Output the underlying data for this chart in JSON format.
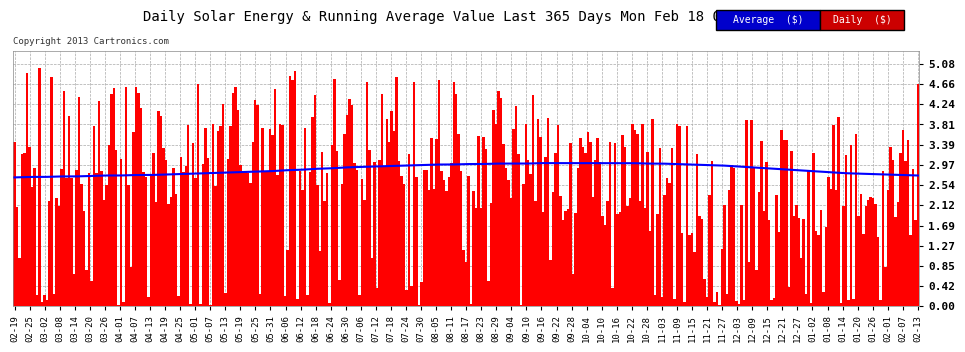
{
  "title": "Daily Solar Energy & Running Average Value Last 365 Days Mon Feb 18 06:56",
  "copyright": "Copyright 2013 Cartronics.com",
  "background_color": "#ffffff",
  "bar_color": "#ff0000",
  "line_color": "#0000ff",
  "yticks": [
    0.0,
    0.42,
    0.85,
    1.27,
    1.69,
    2.12,
    2.54,
    2.97,
    3.39,
    3.81,
    4.24,
    4.66,
    5.08
  ],
  "ylim": [
    0.0,
    5.35
  ],
  "legend_avg_bg": "#0000cc",
  "legend_daily_bg": "#cc0000",
  "xtick_labels": [
    "02-19",
    "02-25",
    "03-02",
    "03-08",
    "03-14",
    "03-20",
    "03-26",
    "04-01",
    "04-07",
    "04-13",
    "04-19",
    "04-25",
    "05-01",
    "05-07",
    "05-13",
    "05-19",
    "05-25",
    "05-31",
    "06-06",
    "06-12",
    "06-18",
    "06-24",
    "06-30",
    "07-06",
    "07-12",
    "07-18",
    "07-24",
    "07-30",
    "08-05",
    "08-11",
    "08-17",
    "08-23",
    "08-29",
    "09-04",
    "09-10",
    "09-16",
    "09-22",
    "09-28",
    "10-04",
    "10-10",
    "10-16",
    "10-22",
    "10-28",
    "11-03",
    "11-09",
    "11-15",
    "11-21",
    "11-27",
    "12-03",
    "12-09",
    "12-15",
    "12-21",
    "12-27",
    "01-02",
    "01-08",
    "01-14",
    "01-20",
    "01-26",
    "02-01",
    "02-07",
    "02-13"
  ],
  "n_bars": 365,
  "avg_line_values": [
    2.7,
    2.71,
    2.71,
    2.72,
    2.72,
    2.73,
    2.74,
    2.74,
    2.75,
    2.75,
    2.76,
    2.77,
    2.78,
    2.79,
    2.8,
    2.81,
    2.82,
    2.83,
    2.85,
    2.86,
    2.88,
    2.89,
    2.91,
    2.92,
    2.93,
    2.94,
    2.95,
    2.96,
    2.97,
    2.97,
    2.98,
    2.98,
    2.99,
    2.99,
    2.99,
    3.0,
    3.0,
    3.0,
    3.0,
    3.0,
    3.0,
    3.0,
    2.99,
    2.99,
    2.98,
    2.97,
    2.96,
    2.95,
    2.93,
    2.91,
    2.89,
    2.87,
    2.85,
    2.83,
    2.81,
    2.79,
    2.78,
    2.77,
    2.76,
    2.75,
    2.74
  ]
}
